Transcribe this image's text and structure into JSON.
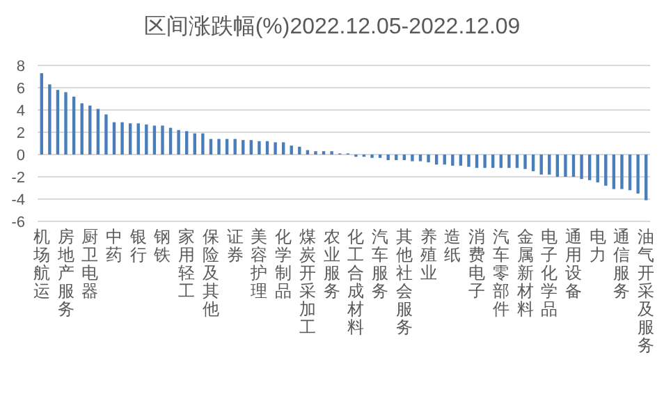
{
  "chart_data": {
    "type": "bar",
    "title": "区间涨跌幅(%)2022.12.05-2022.12.09",
    "categories": [
      "机场航运",
      null,
      null,
      "房地产服务",
      null,
      null,
      "厨卫电器",
      null,
      null,
      "中药",
      null,
      null,
      "银行",
      null,
      null,
      "钢铁",
      null,
      null,
      "家用轻工",
      null,
      null,
      "保险及其他",
      null,
      null,
      "证券",
      null,
      null,
      "美容护理",
      null,
      null,
      "化学制品",
      null,
      null,
      "煤炭开采加工",
      null,
      null,
      "农业服务",
      null,
      null,
      "化工合成材料",
      null,
      null,
      "汽车服务",
      null,
      null,
      "其他社会服务",
      null,
      null,
      "养殖业",
      null,
      null,
      "造纸",
      null,
      null,
      "消费电子",
      null,
      null,
      "汽车零部件",
      null,
      null,
      "金属新材料",
      null,
      null,
      "电子化学品",
      null,
      null,
      "通用设备",
      null,
      null,
      "电力",
      null,
      null,
      "通信服务",
      null,
      null,
      "油气开采及服务"
    ],
    "values": [
      7.3,
      6.3,
      5.8,
      5.6,
      5.2,
      4.6,
      4.4,
      4.1,
      3.6,
      2.9,
      2.9,
      2.8,
      2.8,
      2.7,
      2.6,
      2.6,
      2.4,
      2.2,
      2.1,
      1.9,
      1.9,
      1.4,
      1.4,
      1.4,
      1.4,
      1.3,
      1.3,
      1.2,
      1.2,
      1.1,
      1.1,
      0.8,
      0.7,
      0.4,
      0.3,
      0.3,
      0.3,
      0.1,
      0.1,
      -0.2,
      -0.2,
      -0.3,
      -0.3,
      -0.5,
      -0.5,
      -0.5,
      -0.6,
      -0.6,
      -0.7,
      -0.9,
      -0.9,
      -1,
      -1,
      -1.1,
      -1.2,
      -1.2,
      -1.2,
      -1.2,
      -1.2,
      -1.2,
      -1.3,
      -1.5,
      -1.8,
      -1.8,
      -2,
      -2,
      -2,
      -2.2,
      -2.3,
      -2.5,
      -2.8,
      -3.1,
      -3.1,
      -3.2,
      -3.5,
      -4.1
    ],
    "color": "#4a7ebb",
    "ylim": [
      -6,
      8
    ],
    "yticks": [
      -6,
      -4,
      -2,
      0,
      2,
      4,
      6,
      8
    ],
    "grid": "y"
  }
}
